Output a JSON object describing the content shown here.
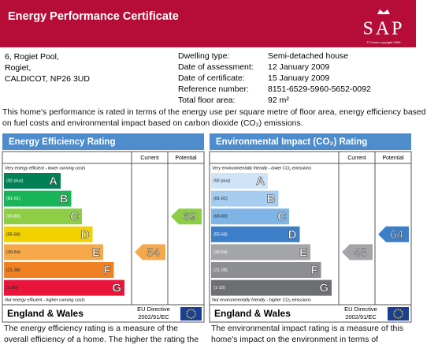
{
  "header": {
    "title": "Energy Performance Certificate",
    "logo": "SAP",
    "logo_note": "© Crown copyright 2005"
  },
  "address": [
    "6, Rogiet Pool,",
    "Rogiet,",
    "CALDICOT, NP26 3UD"
  ],
  "details": [
    {
      "label": "Dwelling type:",
      "value": "Semi-detached house"
    },
    {
      "label": "Date of assessment:",
      "value": "12 January 2009"
    },
    {
      "label": "Date of certificate:",
      "value": "15 January 2009"
    },
    {
      "label": "Reference number:",
      "value": "8151-6529-5960-5652-0092"
    },
    {
      "label": "Total floor area:",
      "value": "92 m²"
    }
  ],
  "intro": "This home's performance is rated in terms of the energy use per square metre of floor area, energy efficiency based on fuel costs and environmental impact based on carbon dioxide (CO₂) emissions.",
  "panels": [
    {
      "title": "Energy Efficiency Rating",
      "columns": [
        "Current",
        "Potential"
      ],
      "top_note": "Very energy efficient - lower running costs",
      "bands": [
        {
          "range": "(92 plus)",
          "letter": "A",
          "color": "#008054"
        },
        {
          "range": "(81-91)",
          "letter": "B",
          "color": "#19b459"
        },
        {
          "range": "(69-80)",
          "letter": "C",
          "color": "#8dce46"
        },
        {
          "range": "(55-68)",
          "letter": "D",
          "color": "#f2d100"
        },
        {
          "range": "(39-54)",
          "letter": "E",
          "color": "#f5a94a"
        },
        {
          "range": "(21-38)",
          "letter": "F",
          "color": "#ef8023"
        },
        {
          "range": "(1-20)",
          "letter": "G",
          "color": "#e9153b"
        }
      ],
      "bottom_note": "Not energy efficient - higher running costs",
      "current": 54,
      "potential": 69,
      "region": "England & Wales",
      "directive": [
        "EU Directive",
        "2002/91/EC"
      ],
      "description": "The energy efficiency rating is a measure of the overall efficiency of a home. The higher the rating the"
    },
    {
      "title": "Environmental Impact (CO₂) Rating",
      "columns": [
        "Current",
        "Potential"
      ],
      "top_note": "Very environmentally friendly - lower CO₂ emissions",
      "bands": [
        {
          "range": "(92 plus)",
          "letter": "A",
          "color": "#cfe4f6"
        },
        {
          "range": "(81-91)",
          "letter": "B",
          "color": "#a6cdef"
        },
        {
          "range": "(69-80)",
          "letter": "C",
          "color": "#7fb5e6"
        },
        {
          "range": "(55-68)",
          "letter": "D",
          "color": "#3d7ec9"
        },
        {
          "range": "(39-54)",
          "letter": "E",
          "color": "#a3a5a8"
        },
        {
          "range": "(21-38)",
          "letter": "F",
          "color": "#8c8e91"
        },
        {
          "range": "(1-20)",
          "letter": "G",
          "color": "#6d6f72"
        }
      ],
      "bottom_note": "Not environmentally friendly - higher CO₂ emissions",
      "current": 48,
      "potential": 64,
      "region": "England & Wales",
      "directive": [
        "EU Directive",
        "2002/91/EC"
      ],
      "description": "The environmental impact rating is a measure of this home's impact on the environment in terms of"
    }
  ]
}
